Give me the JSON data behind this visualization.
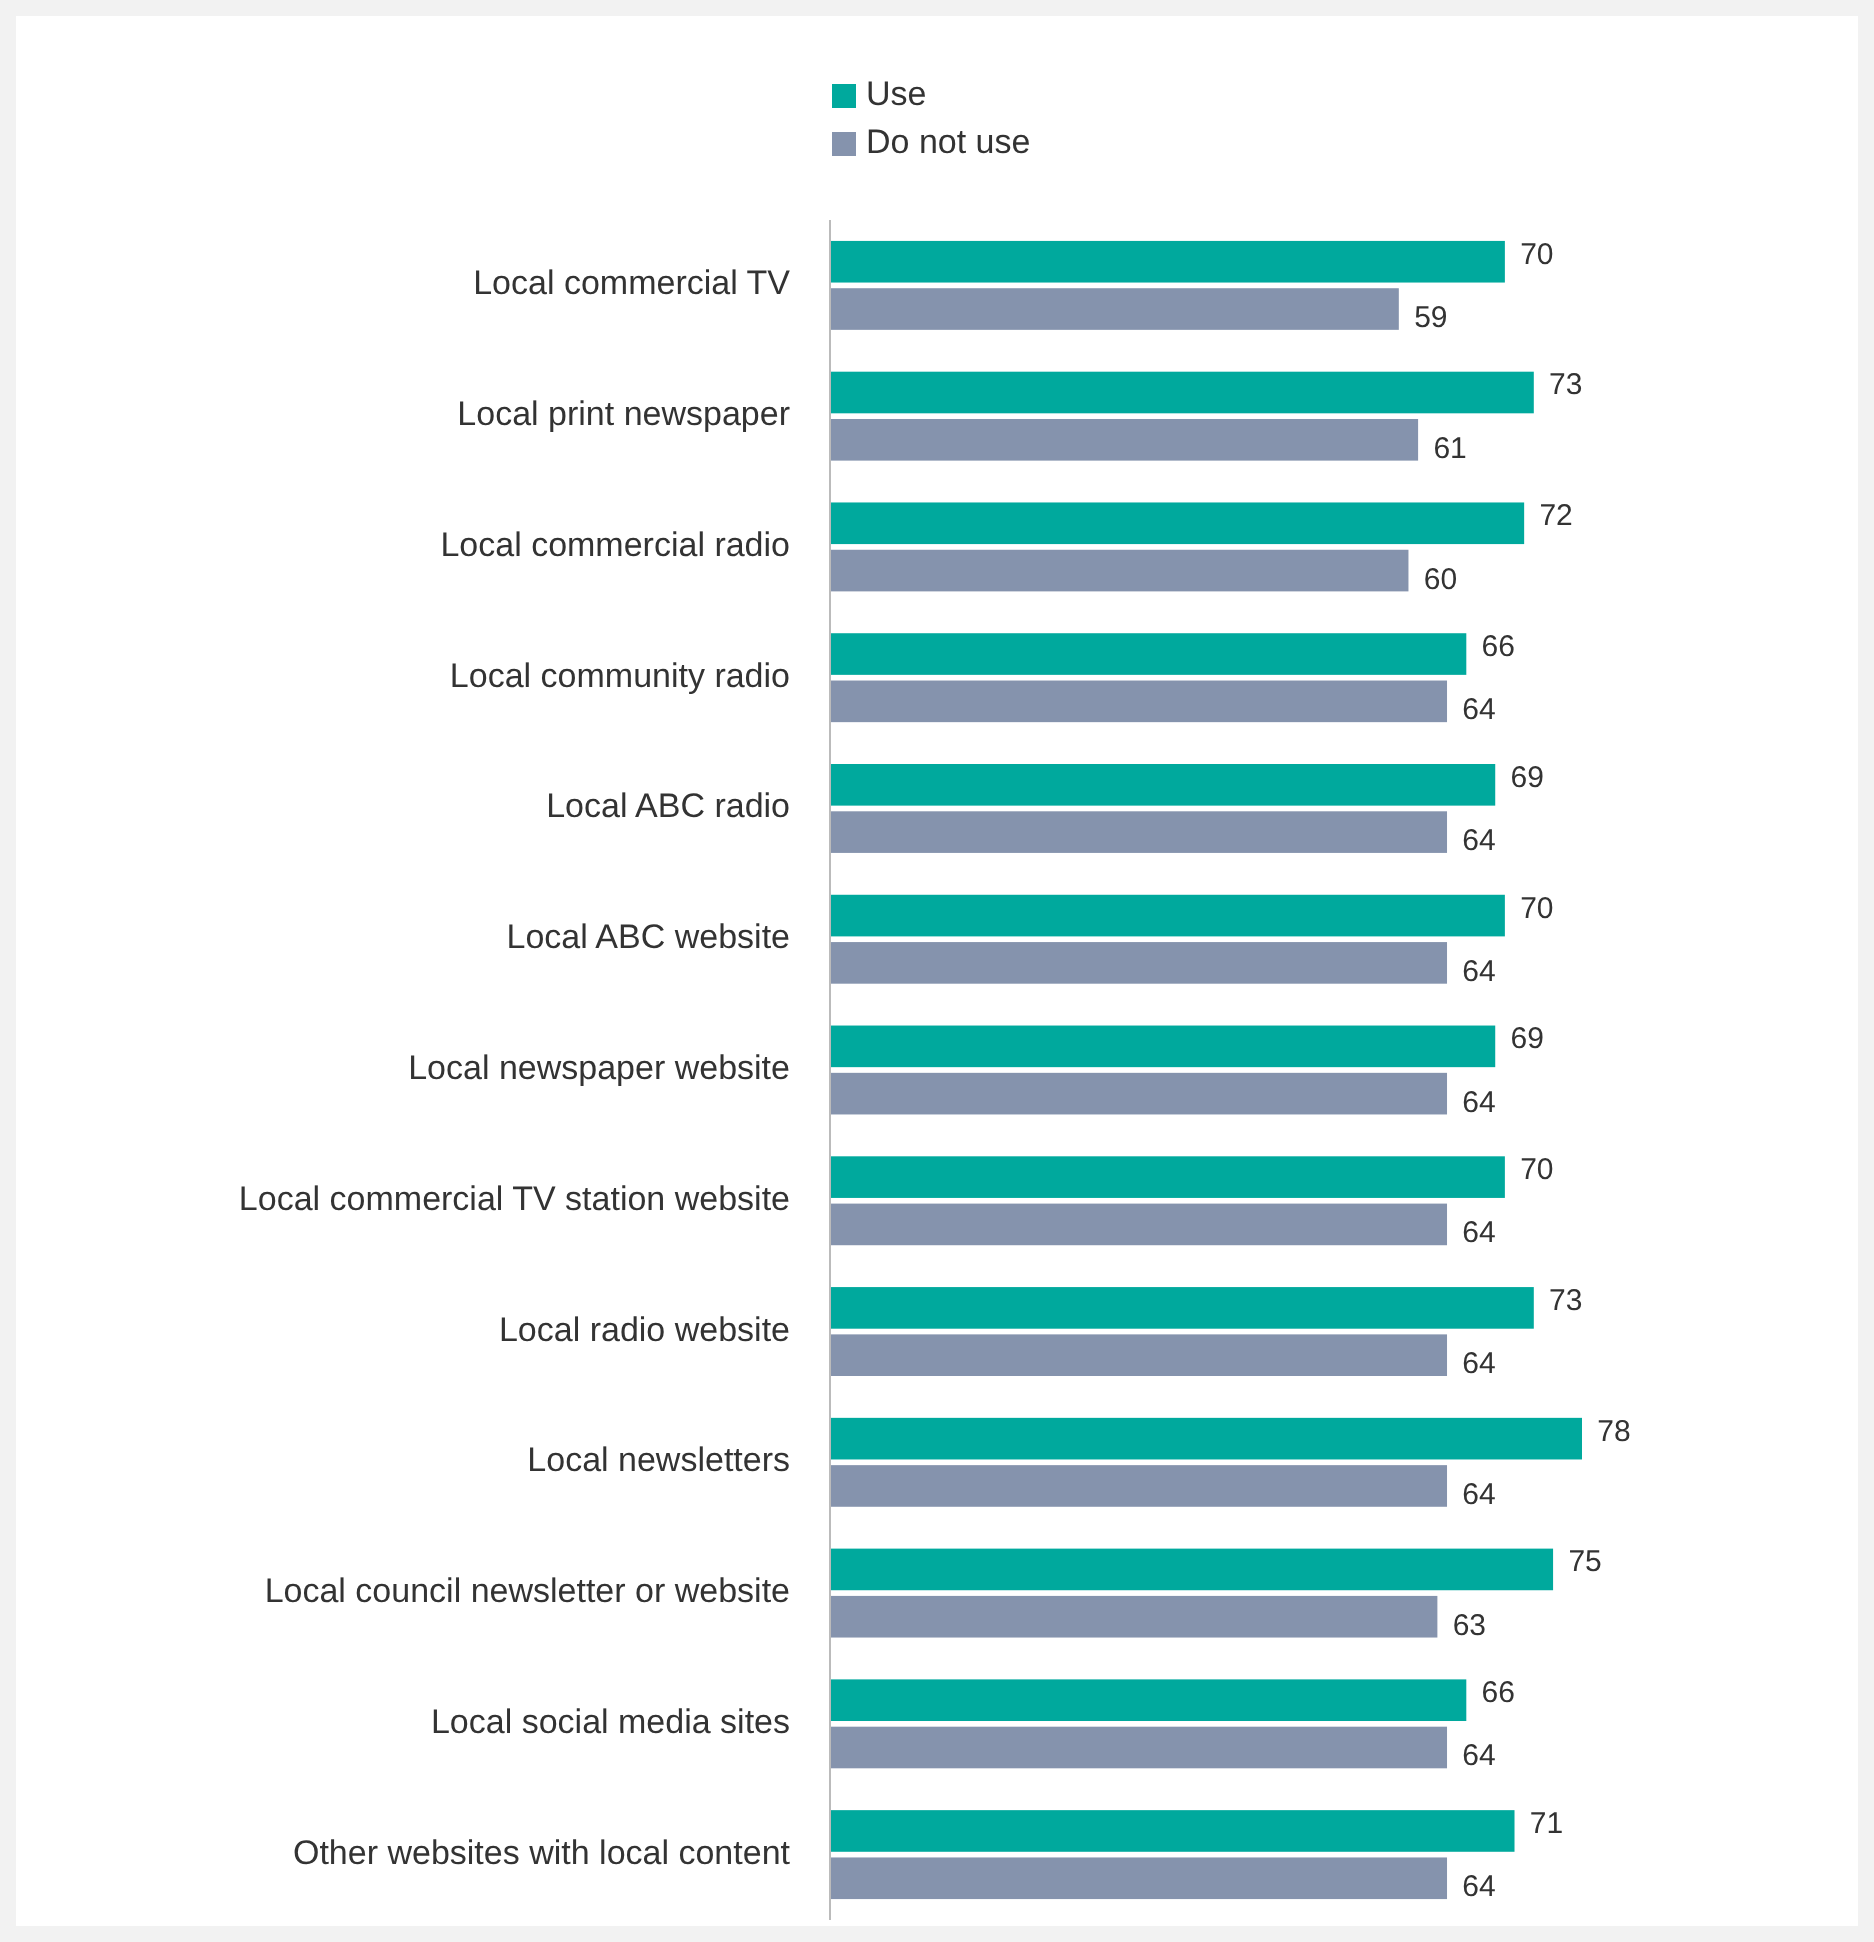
{
  "chart_data": {
    "type": "bar",
    "orientation": "horizontal",
    "legend": "top",
    "data_labels": true,
    "categories": [
      "Local commercial TV",
      "Local print newspaper",
      "Local commercial radio",
      "Local community radio",
      "Local ABC radio",
      "Local ABC website ",
      "Local newspaper website",
      "Local commercial TV station website",
      "Local radio website",
      "Local newsletters",
      "Local council newsletter or website",
      "Local social media sites",
      "Other websites with local content"
    ],
    "series": [
      {
        "name": "Use",
        "color": "#00a99d",
        "values": [
          70,
          73,
          72,
          66,
          69,
          70,
          69,
          70,
          73,
          78,
          75,
          66,
          71
        ]
      },
      {
        "name": "Do not use",
        "color": "#8593ad",
        "values": [
          59,
          61,
          60,
          64,
          64,
          64,
          64,
          64,
          64,
          64,
          63,
          64,
          64
        ]
      }
    ]
  }
}
